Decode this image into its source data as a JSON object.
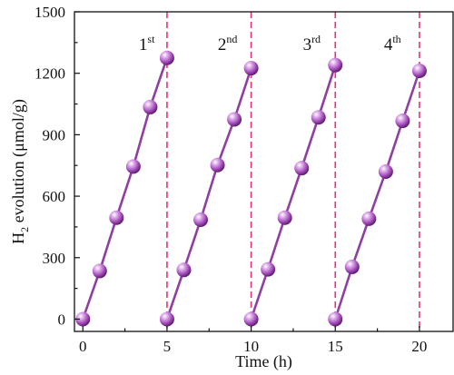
{
  "chart_data": {
    "type": "line",
    "xlabel": "Time (h)",
    "ylabel_main": "H",
    "ylabel_sub": "2",
    "ylabel_rest": " evolution (μmol/g)",
    "xlim": [
      -0.5,
      22
    ],
    "ylim": [
      -60,
      1500
    ],
    "xticks": [
      0,
      5,
      10,
      15,
      20
    ],
    "yticks": [
      0,
      300,
      600,
      900,
      1200,
      1500
    ],
    "grid": false,
    "colors": {
      "series": "#8e3fa0",
      "marker": "#b05cc4",
      "cycle_line": "#e8307c"
    },
    "cycle_separators": [
      5,
      10,
      15,
      20
    ],
    "cycle_labels": [
      {
        "num": "1",
        "sup": "st",
        "x": 3.8
      },
      {
        "num": "2",
        "sup": "nd",
        "x": 8.6
      },
      {
        "num": "3",
        "sup": "rd",
        "x": 13.6
      },
      {
        "num": "4",
        "sup": "th",
        "x": 18.4
      }
    ],
    "series": [
      {
        "x": [
          0,
          1,
          2,
          3,
          4,
          5
        ],
        "y": [
          0,
          235,
          495,
          745,
          1035,
          1275
        ]
      },
      {
        "x": [
          5,
          6,
          7,
          8,
          9,
          10
        ],
        "y": [
          0,
          240,
          485,
          752,
          975,
          1225
        ]
      },
      {
        "x": [
          10,
          11,
          12,
          13,
          14,
          15
        ],
        "y": [
          0,
          243,
          495,
          737,
          985,
          1240
        ]
      },
      {
        "x": [
          15,
          16,
          17,
          18,
          19,
          20
        ],
        "y": [
          0,
          255,
          490,
          720,
          968,
          1212
        ]
      }
    ]
  }
}
